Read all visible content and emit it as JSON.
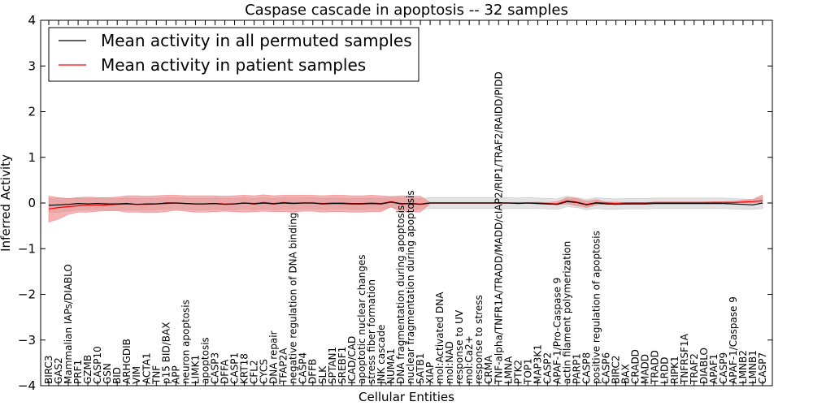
{
  "chart_data": {
    "type": "line",
    "title": "Caspase cascade in apoptosis -- 32 samples",
    "xlabel": "Cellular Entities",
    "ylabel": "Inferred Activity",
    "ylim": [
      -4,
      4
    ],
    "yticks": [
      "−4",
      "−3",
      "−2",
      "−1",
      "0",
      "1",
      "2",
      "3",
      "4"
    ],
    "legend_position": "top-left",
    "colors": {
      "permuted": "#000000",
      "patient": "#ff0000",
      "permuted_band": "#bfbfbf",
      "patient_band": "#f08080"
    },
    "categories": [
      "BIRC3",
      "GAS2",
      "Mammalian IAPs/DIABLO",
      "PRF1",
      "GZMB",
      "CASP10",
      "GSN",
      "BID",
      "ARHGDIB",
      "VIM",
      "ACTA1",
      "TNF",
      "p15 BID/BAX",
      "APP",
      "neuron apoptosis",
      "LIMK1",
      "apoptosis",
      "CASP3",
      "DFFA",
      "CASP1",
      "KRT18",
      "CFL2",
      "CYCS",
      "DNA repair",
      "TFAP2A",
      "negative regulation of DNA binding",
      "CASP4",
      "DFFB",
      "SLK",
      "SPTAN1",
      "SREBF1",
      "ICAD/CAD",
      "apoptotic nuclear changes",
      "stress fiber formation",
      "JNK cascade",
      "NUMA1",
      "DNA fragmentation during apoptosis",
      "nuclear fragmentation during apoptosis",
      "SATB1",
      "XIAP",
      "mol:Activated DNA",
      "mol:NAD",
      "response to UV",
      "mol:Ca2+",
      "response to stress",
      "CRMA",
      "TNF-alpha/TNFR1A/TRADD/MADD/cIAP2/RIP1/TRAF2/RAIDD/PIDD",
      "LMNA",
      "PTK2",
      "TOP1",
      "MAP3K1",
      "CASP2",
      "APAF-1/Pro-Caspase 9",
      "actin filament polymerization",
      "PARP1",
      "CASP8",
      "positive regulation of apoptosis",
      "CASP6",
      "BIRC2",
      "BAX",
      "CRADD",
      "MADD",
      "TRADD",
      "LRDD",
      "RIPK1",
      "TNFRSF1A",
      "TRAF2",
      "DIABLO",
      "APAF1",
      "CASP9",
      "APAF-1/Caspase 9",
      "LMNB2",
      "LMNB1",
      "CASP7"
    ],
    "series": [
      {
        "name": "Mean activity in all permuted samples",
        "values": [
          -0.05,
          -0.04,
          -0.03,
          -0.01,
          -0.02,
          -0.01,
          -0.02,
          -0.02,
          -0.01,
          -0.03,
          -0.02,
          -0.02,
          0.0,
          0.0,
          -0.01,
          -0.02,
          -0.02,
          -0.01,
          -0.03,
          -0.02,
          0.0,
          -0.02,
          0.0,
          -0.02,
          0.0,
          -0.01,
          0.0,
          0.0,
          -0.02,
          -0.01,
          -0.01,
          -0.02,
          -0.02,
          -0.01,
          -0.02,
          0.02,
          -0.02,
          -0.01,
          -0.03,
          0.0,
          0.0,
          0.0,
          0.0,
          0.0,
          0.0,
          0.0,
          0.0,
          0.0,
          -0.01,
          0.0,
          -0.01,
          -0.02,
          -0.03,
          0.03,
          0.01,
          -0.04,
          0.0,
          -0.02,
          -0.03,
          -0.02,
          -0.02,
          -0.02,
          -0.01,
          -0.01,
          -0.01,
          -0.01,
          -0.01,
          -0.01,
          -0.01,
          -0.01,
          -0.02,
          -0.03,
          -0.04,
          0.0
        ],
        "lower": [
          -0.2,
          -0.2,
          -0.18,
          -0.15,
          -0.15,
          -0.15,
          -0.15,
          -0.15,
          -0.15,
          -0.15,
          -0.15,
          -0.15,
          -0.13,
          -0.13,
          -0.14,
          -0.15,
          -0.15,
          -0.14,
          -0.15,
          -0.15,
          -0.13,
          -0.15,
          -0.13,
          -0.15,
          -0.13,
          -0.13,
          -0.13,
          -0.13,
          -0.14,
          -0.13,
          -0.13,
          -0.14,
          -0.14,
          -0.13,
          -0.14,
          -0.1,
          -0.13,
          -0.13,
          -0.14,
          -0.12,
          -0.12,
          -0.12,
          -0.12,
          -0.12,
          -0.12,
          -0.12,
          -0.12,
          -0.12,
          -0.12,
          -0.12,
          -0.12,
          -0.13,
          -0.14,
          -0.08,
          -0.1,
          -0.15,
          -0.12,
          -0.14,
          -0.14,
          -0.13,
          -0.13,
          -0.13,
          -0.12,
          -0.12,
          -0.12,
          -0.12,
          -0.12,
          -0.12,
          -0.12,
          -0.12,
          -0.13,
          -0.14,
          -0.14,
          -0.12
        ],
        "upper": [
          0.1,
          0.1,
          0.1,
          0.11,
          0.1,
          0.11,
          0.1,
          0.1,
          0.11,
          0.1,
          0.1,
          0.1,
          0.12,
          0.12,
          0.11,
          0.1,
          0.1,
          0.11,
          0.1,
          0.1,
          0.12,
          0.1,
          0.12,
          0.1,
          0.12,
          0.11,
          0.12,
          0.12,
          0.1,
          0.11,
          0.11,
          0.1,
          0.1,
          0.11,
          0.1,
          0.14,
          0.11,
          0.11,
          0.1,
          0.12,
          0.12,
          0.12,
          0.12,
          0.12,
          0.12,
          0.12,
          0.12,
          0.12,
          0.11,
          0.12,
          0.11,
          0.1,
          0.09,
          0.15,
          0.12,
          0.08,
          0.12,
          0.1,
          0.09,
          0.1,
          0.1,
          0.1,
          0.11,
          0.11,
          0.11,
          0.11,
          0.11,
          0.11,
          0.11,
          0.11,
          0.1,
          0.09,
          0.08,
          0.12
        ]
      },
      {
        "name": "Mean activity in patient samples",
        "values": [
          -0.13,
          -0.1,
          -0.08,
          -0.06,
          -0.05,
          -0.05,
          -0.04,
          -0.03,
          -0.02,
          -0.03,
          -0.03,
          -0.02,
          -0.01,
          0.0,
          -0.01,
          -0.02,
          -0.02,
          -0.01,
          -0.02,
          -0.02,
          0.0,
          -0.01,
          0.01,
          -0.01,
          0.01,
          0.0,
          0.0,
          0.0,
          -0.01,
          0.0,
          0.0,
          -0.01,
          -0.01,
          0.0,
          -0.01,
          0.03,
          -0.01,
          -0.01,
          -0.02,
          0.0,
          0.0,
          0.0,
          0.0,
          0.0,
          0.0,
          0.0,
          0.0,
          0.0,
          0.0,
          0.0,
          0.0,
          -0.01,
          -0.02,
          0.05,
          0.02,
          -0.03,
          0.01,
          0.0,
          -0.01,
          0.0,
          0.0,
          0.0,
          0.01,
          0.01,
          0.01,
          0.01,
          0.01,
          0.01,
          0.01,
          0.01,
          0.01,
          0.02,
          0.03,
          0.05
        ],
        "lower": [
          -0.42,
          -0.35,
          -0.25,
          -0.2,
          -0.2,
          -0.18,
          -0.17,
          -0.17,
          -0.2,
          -0.2,
          -0.21,
          -0.21,
          -0.19,
          -0.16,
          -0.18,
          -0.2,
          -0.2,
          -0.19,
          -0.18,
          -0.19,
          -0.2,
          -0.19,
          -0.18,
          -0.19,
          -0.19,
          -0.2,
          -0.18,
          -0.18,
          -0.2,
          -0.19,
          -0.19,
          -0.2,
          -0.2,
          -0.19,
          -0.19,
          -0.08,
          -0.2,
          -0.19,
          -0.2,
          -0.01,
          -0.01,
          -0.01,
          -0.01,
          -0.01,
          -0.01,
          -0.01,
          -0.01,
          -0.01,
          -0.01,
          -0.01,
          -0.02,
          -0.03,
          -0.04,
          -0.02,
          -0.06,
          -0.1,
          -0.04,
          -0.02,
          -0.02,
          -0.01,
          -0.01,
          -0.01,
          0.0,
          0.0,
          0.0,
          0.0,
          0.0,
          0.0,
          0.0,
          0.0,
          0.0,
          0.0,
          0.0,
          0.01
        ],
        "upper": [
          0.15,
          0.12,
          0.1,
          0.12,
          0.13,
          0.12,
          0.12,
          0.13,
          0.16,
          0.16,
          0.15,
          0.16,
          0.17,
          0.17,
          0.16,
          0.16,
          0.16,
          0.16,
          0.15,
          0.16,
          0.17,
          0.16,
          0.18,
          0.16,
          0.17,
          0.17,
          0.17,
          0.17,
          0.16,
          0.17,
          0.17,
          0.16,
          0.16,
          0.17,
          0.16,
          0.14,
          0.16,
          0.15,
          0.15,
          0.01,
          0.01,
          0.01,
          0.01,
          0.01,
          0.01,
          0.01,
          0.01,
          0.01,
          0.01,
          0.01,
          0.02,
          0.01,
          0.03,
          0.12,
          0.1,
          0.04,
          0.08,
          0.02,
          0.02,
          0.01,
          0.01,
          0.01,
          0.02,
          0.02,
          0.02,
          0.02,
          0.02,
          0.02,
          0.03,
          0.03,
          0.04,
          0.06,
          0.08,
          0.18
        ]
      }
    ]
  }
}
